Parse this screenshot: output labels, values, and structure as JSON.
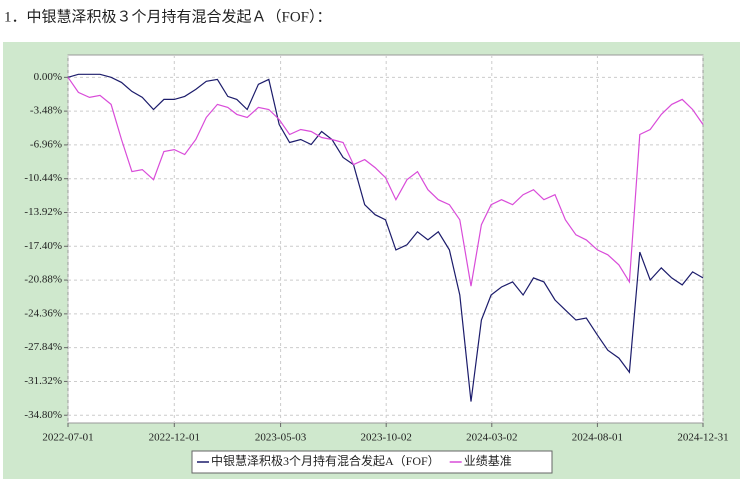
{
  "chart_data": {
    "type": "line",
    "title": "1．中银慧泽积极３个月持有混合发起Ａ（FOF）：",
    "x": [
      "2022-07-01",
      "2022-07-16",
      "2022-08-01",
      "2022-08-16",
      "2022-09-01",
      "2022-09-16",
      "2022-10-01",
      "2022-10-16",
      "2022-11-01",
      "2022-11-16",
      "2022-12-01",
      "2022-12-16",
      "2023-01-01",
      "2023-01-16",
      "2023-02-01",
      "2023-02-16",
      "2023-03-01",
      "2023-03-16",
      "2023-04-01",
      "2023-04-16",
      "2023-05-01",
      "2023-05-16",
      "2023-06-01",
      "2023-06-16",
      "2023-07-01",
      "2023-07-16",
      "2023-08-01",
      "2023-08-16",
      "2023-09-01",
      "2023-09-16",
      "2023-10-01",
      "2023-10-16",
      "2023-11-01",
      "2023-11-16",
      "2023-12-01",
      "2023-12-16",
      "2024-01-01",
      "2024-01-16",
      "2024-02-01",
      "2024-02-16",
      "2024-03-01",
      "2024-03-16",
      "2024-04-01",
      "2024-04-16",
      "2024-05-01",
      "2024-05-16",
      "2024-06-01",
      "2024-06-16",
      "2024-07-01",
      "2024-07-16",
      "2024-08-01",
      "2024-08-16",
      "2024-09-01",
      "2024-09-16",
      "2024-10-01",
      "2024-10-16",
      "2024-11-01",
      "2024-11-16",
      "2024-12-01",
      "2024-12-16",
      "2024-12-31"
    ],
    "series": [
      {
        "name": "中银慧泽积极3个月持有混合发起A（FOF）",
        "color": "#1c1c6b",
        "values": [
          0,
          0.31,
          0.31,
          0.31,
          0,
          -0.52,
          -1.45,
          -2.07,
          -3.31,
          -2.27,
          -2.27,
          -1.96,
          -1.24,
          -0.41,
          -0.21,
          -1.96,
          -2.27,
          -3.31,
          -0.72,
          -0.21,
          -4.86,
          -6.71,
          -6.4,
          -6.92,
          -5.58,
          -6.4,
          -8.26,
          -8.99,
          -13.12,
          -14.15,
          -14.67,
          -17.77,
          -17.25,
          -15.91,
          -16.74,
          -15.91,
          -17.77,
          -22.42,
          -33.4,
          -24.99,
          -22.42,
          -21.59,
          -21.07,
          -22.42,
          -20.66,
          -21.07,
          -22.93,
          -23.97,
          -24.99,
          -24.79,
          -26.55,
          -28.1,
          -28.92,
          -30.37,
          -18.0,
          -20.87,
          -19.63,
          -20.66,
          -21.38,
          -20.04,
          -20.66
        ]
      },
      {
        "name": "业绩基准",
        "color": "#d94cd9",
        "values": [
          0,
          -1.55,
          -2.07,
          -1.86,
          -2.79,
          -6.4,
          -9.71,
          -9.5,
          -10.54,
          -7.64,
          -7.44,
          -7.95,
          -6.4,
          -4.13,
          -2.79,
          -3.1,
          -3.82,
          -4.13,
          -3.1,
          -3.31,
          -4.34,
          -5.89,
          -5.37,
          -5.58,
          -6.2,
          -6.4,
          -6.71,
          -8.99,
          -8.47,
          -9.3,
          -10.33,
          -12.6,
          -10.54,
          -9.71,
          -11.57,
          -12.6,
          -13.12,
          -14.67,
          -21.5,
          -15.18,
          -13.12,
          -12.6,
          -13.12,
          -12.09,
          -11.57,
          -12.6,
          -12.09,
          -14.67,
          -16.22,
          -16.74,
          -17.77,
          -18.28,
          -19.32,
          -21.07,
          -5.89,
          -5.37,
          -3.82,
          -2.79,
          -2.27,
          -3.31,
          -4.86
        ]
      }
    ],
    "xlim": [
      "2022-07-01",
      "2024-12-31"
    ],
    "xticks": [
      "2022-07-01",
      "2022-12-01",
      "2023-05-03",
      "2023-10-02",
      "2024-03-02",
      "2024-08-01",
      "2024-12-31"
    ],
    "ylim": [
      -35.6,
      2.3
    ],
    "yticks": [
      {
        "value": 0,
        "label": "0.00%"
      },
      {
        "value": -3.48,
        "label": "-3.48%"
      },
      {
        "value": -6.96,
        "label": "-6.96%"
      },
      {
        "value": -10.44,
        "label": "-10.44%"
      },
      {
        "value": -13.92,
        "label": "-13.92%"
      },
      {
        "value": -17.4,
        "label": "-17.40%"
      },
      {
        "value": -20.88,
        "label": "-20.88%"
      },
      {
        "value": -24.36,
        "label": "-24.36%"
      },
      {
        "value": -27.84,
        "label": "-27.84%"
      },
      {
        "value": -31.32,
        "label": "-31.32%"
      },
      {
        "value": -34.8,
        "label": "-34.80%"
      }
    ],
    "grid": true
  }
}
